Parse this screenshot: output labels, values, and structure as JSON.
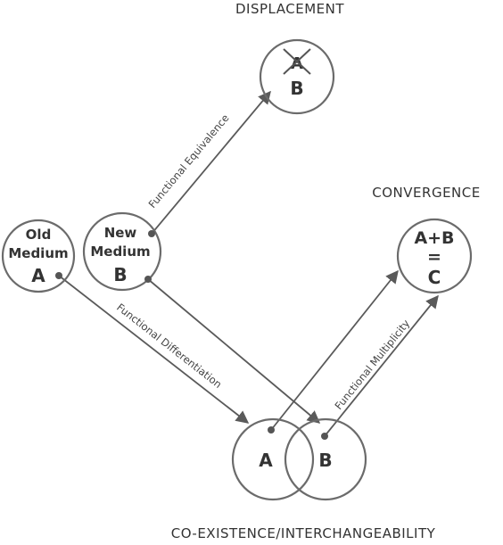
{
  "headings": {
    "displacement": "DISPLACEMENT",
    "convergence": "CONVERGENCE",
    "coexistence": "CO-EXISTENCE/INTERCHANGEABILITY"
  },
  "nodes": {
    "old_medium": {
      "line1": "Old",
      "line2": "Medium",
      "letter": "A"
    },
    "new_medium": {
      "line1": "New",
      "line2": "Medium",
      "letter": "B"
    },
    "displacement": {
      "crossed": "A",
      "letter": "B"
    },
    "convergence": {
      "line1": "A+B",
      "line2": "=",
      "line3": "C"
    },
    "coexistence": {
      "left": "A",
      "right": "B"
    }
  },
  "edges": {
    "functional_equivalence": "Functional Equivalence",
    "functional_differentiation": "Functional Differentiation",
    "functional_multiplicity": "Functional Multiplicity"
  },
  "colors": {
    "stroke": "#6b6b6b",
    "text": "#333333",
    "background": "#ffffff"
  }
}
